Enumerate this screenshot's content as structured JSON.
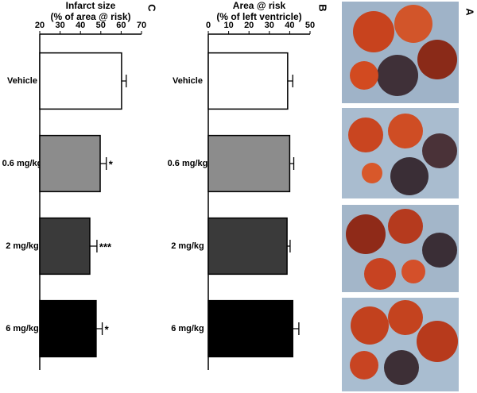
{
  "image_panel": {
    "label": "A"
  },
  "chart_data": [
    {
      "type": "bar",
      "panel_label": "B",
      "title": "Area @ risk",
      "subtitle": "(% of left ventricle)",
      "categories": [
        "Vehicle",
        "0.6 mg/kg",
        "2 mg/kg",
        "6 mg/kg"
      ],
      "values": [
        39,
        40,
        38.7,
        41.5
      ],
      "errors": [
        2.5,
        2,
        1.5,
        3
      ],
      "colors": [
        "#ffffff",
        "#8c8c8c",
        "#3a3a3a",
        "#000000"
      ],
      "xlim": [
        0,
        50
      ],
      "xticks": [
        0,
        10,
        20,
        30,
        40,
        50
      ]
    },
    {
      "type": "bar",
      "panel_label": "C",
      "title": "Infarct size",
      "subtitle": "(% of area @ risk)",
      "categories": [
        "Vehicle",
        "0.6 mg/kg",
        "2 mg/kg",
        "6 mg/kg"
      ],
      "values": [
        60.2,
        49.7,
        44.6,
        47.7
      ],
      "errors": [
        2.3,
        3,
        3.5,
        3
      ],
      "annotations": [
        null,
        "*",
        "***",
        "*"
      ],
      "colors": [
        "#ffffff",
        "#8c8c8c",
        "#3a3a3a",
        "#000000"
      ],
      "xlim": [
        20,
        70
      ],
      "xticks": [
        20,
        30,
        40,
        50,
        60,
        70
      ]
    }
  ]
}
